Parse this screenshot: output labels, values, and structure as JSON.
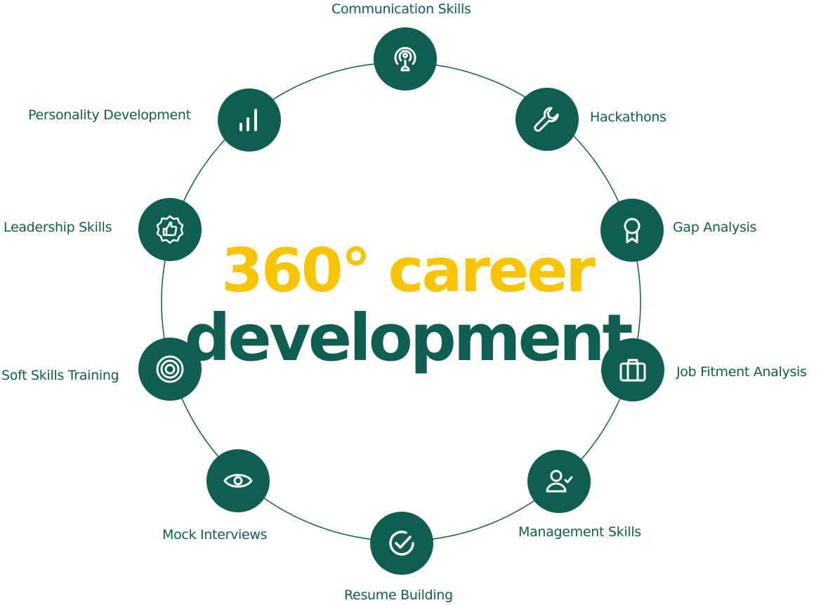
{
  "title": {
    "line1": "360° career",
    "line2": "development"
  },
  "colors": {
    "primary": "#0f5e52",
    "accent": "#f7c600",
    "ring": "#0f5e52"
  },
  "nodes": [
    {
      "label": "Communication Skills",
      "icon": "podcast-icon"
    },
    {
      "label": "Hackathons",
      "icon": "wrench-icon"
    },
    {
      "label": "Gap Analysis",
      "icon": "award-ribbon-icon"
    },
    {
      "label": "Job Fitment Analysis",
      "icon": "briefcase-icon"
    },
    {
      "label": "Management Skills",
      "icon": "user-check-icon"
    },
    {
      "label": "Resume Building",
      "icon": "check-circle-icon"
    },
    {
      "label": "Mock Interviews",
      "icon": "eye-icon"
    },
    {
      "label": "Soft Skills Training",
      "icon": "target-icon"
    },
    {
      "label": "Leadership Skills",
      "icon": "thumbs-up-badge-icon"
    },
    {
      "label": "Personality Development",
      "icon": "bar-chart-icon"
    }
  ]
}
